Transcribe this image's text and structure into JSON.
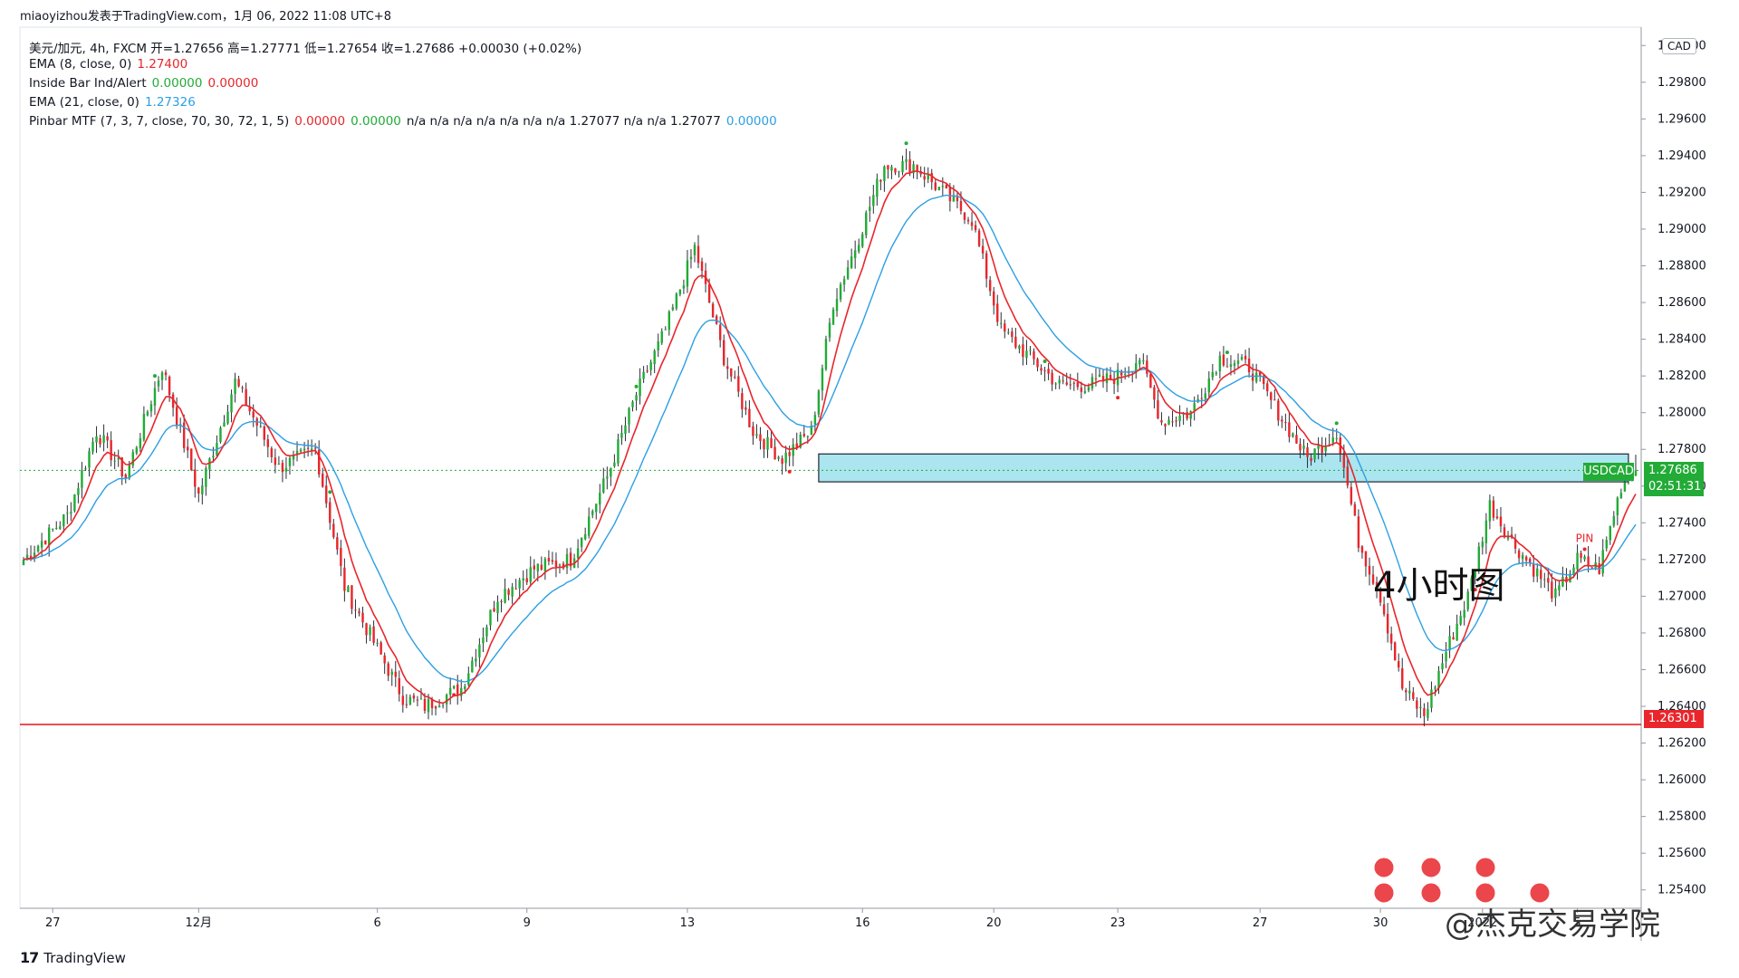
{
  "header": {
    "publisher": "miaoyizhou发表于TradingView.com，1月 06, 2022 11:08 UTC+8"
  },
  "legend": [
    {
      "label": "美元/加元, 4h, FXCM  开=1.27656  高=1.27771  低=1.27654  收=1.27686  +0.00030 (+0.02%)",
      "values": []
    },
    {
      "label": "EMA (8, close, 0)",
      "values": [
        {
          "text": "1.27400",
          "color": "#e8262b"
        }
      ]
    },
    {
      "label": "Inside Bar Ind/Alert",
      "values": [
        {
          "text": "0.00000",
          "color": "#22ab37"
        },
        {
          "text": "0.00000",
          "color": "#e8262b"
        }
      ]
    },
    {
      "label": "EMA (21, close, 0)",
      "values": [
        {
          "text": "1.27326",
          "color": "#2d9fe3"
        }
      ]
    },
    {
      "label": "Pinbar MTF (7, 3, 7, close, 70, 30, 72, 1, 5)",
      "values": [
        {
          "text": "0.00000",
          "color": "#e8262b"
        },
        {
          "text": "0.00000",
          "color": "#22ab37"
        },
        {
          "text": "n/a  n/a  n/a  n/a  n/a  n/a  n/a  1.27077  n/a  n/a  1.27077",
          "color": "#131722"
        },
        {
          "text": "0.00000",
          "color": "#2d9fe3"
        }
      ]
    }
  ],
  "axis": {
    "currency_button": "CAD",
    "y_ticks": [
      "1.30000",
      "1.29800",
      "1.29600",
      "1.29400",
      "1.29200",
      "1.29000",
      "1.28800",
      "1.28600",
      "1.28400",
      "1.28200",
      "1.28000",
      "1.27800",
      "1.27600",
      "1.27400",
      "1.27200",
      "1.27000",
      "1.26800",
      "1.26600",
      "1.26400",
      "1.26200",
      "1.26000",
      "1.25800",
      "1.25600",
      "1.25400"
    ],
    "x_ticks": [
      "27",
      "12月",
      "6",
      "9",
      "13",
      "16",
      "20",
      "23",
      "27",
      "30",
      "2022",
      "5"
    ]
  },
  "tags": {
    "pair": "USDCAD",
    "last_price": "1.27686",
    "countdown": "02:51:31",
    "support_price": "1.26301"
  },
  "labels": {
    "pin": "PIN",
    "timeframe_note": "4小时图",
    "brand": "TradingView",
    "brand_logo": "17",
    "watermark": "@杰克交易学院"
  },
  "colors": {
    "up": "#22ab37",
    "down": "#e8262b",
    "ema8": "#e8262b",
    "ema21": "#2d9fe3",
    "zone": "#8fdcea"
  },
  "chart_data": {
    "type": "candlestick",
    "title": "美元/加元, 4h, FXCM",
    "ylim": [
      1.253,
      1.301
    ],
    "x_categories": [
      "27",
      "12月",
      "6",
      "9",
      "13",
      "16",
      "20",
      "23",
      "27",
      "30",
      "2022",
      "5"
    ],
    "anchors": [
      [
        0,
        1.272
      ],
      [
        12,
        1.2744
      ],
      [
        20,
        1.279
      ],
      [
        28,
        1.2765
      ],
      [
        38,
        1.2825
      ],
      [
        48,
        1.2755
      ],
      [
        58,
        1.2817
      ],
      [
        70,
        1.277
      ],
      [
        80,
        1.278
      ],
      [
        88,
        1.2705
      ],
      [
        96,
        1.2675
      ],
      [
        104,
        1.2645
      ],
      [
        110,
        1.264
      ],
      [
        120,
        1.265
      ],
      [
        130,
        1.27
      ],
      [
        140,
        1.2715
      ],
      [
        150,
        1.272
      ],
      [
        160,
        1.2765
      ],
      [
        168,
        1.281
      ],
      [
        176,
        1.2845
      ],
      [
        184,
        1.289
      ],
      [
        192,
        1.283
      ],
      [
        200,
        1.279
      ],
      [
        208,
        1.2775
      ],
      [
        216,
        1.279
      ],
      [
        222,
        1.286
      ],
      [
        228,
        1.289
      ],
      [
        236,
        1.2935
      ],
      [
        244,
        1.2935
      ],
      [
        252,
        1.292
      ],
      [
        260,
        1.2905
      ],
      [
        268,
        1.2845
      ],
      [
        276,
        1.283
      ],
      [
        284,
        1.2815
      ],
      [
        292,
        1.2815
      ],
      [
        300,
        1.282
      ],
      [
        306,
        1.283
      ],
      [
        312,
        1.2795
      ],
      [
        320,
        1.28
      ],
      [
        328,
        1.283
      ],
      [
        336,
        1.2825
      ],
      [
        344,
        1.28
      ],
      [
        352,
        1.2775
      ],
      [
        360,
        1.279
      ],
      [
        366,
        1.273
      ],
      [
        372,
        1.27
      ],
      [
        378,
        1.265
      ],
      [
        384,
        1.2635
      ],
      [
        390,
        1.267
      ],
      [
        396,
        1.27
      ],
      [
        402,
        1.275
      ],
      [
        408,
        1.273
      ],
      [
        414,
        1.2715
      ],
      [
        420,
        1.27
      ],
      [
        426,
        1.272
      ],
      [
        432,
        1.2715
      ],
      [
        438,
        1.276
      ],
      [
        442,
        1.277
      ]
    ],
    "candle_count": 443,
    "last": {
      "open": 1.27656,
      "high": 1.27771,
      "low": 1.27654,
      "close": 1.27686
    },
    "ema8_last": 1.274,
    "ema21_last": 1.27326,
    "support_line": 1.26301,
    "resistance_zone": {
      "from_index": 218,
      "to_index": 440,
      "low": 1.27623,
      "high": 1.27775
    },
    "last_price_line": 1.27686,
    "markers": [
      {
        "index": 36,
        "side": "above",
        "color": "#22ab37"
      },
      {
        "index": 84,
        "side": "above",
        "color": "#22ab37"
      },
      {
        "index": 118,
        "side": "below",
        "color": "#e8262b"
      },
      {
        "index": 168,
        "side": "above",
        "color": "#22ab37"
      },
      {
        "index": 210,
        "side": "below",
        "color": "#e8262b"
      },
      {
        "index": 242,
        "side": "above",
        "color": "#22ab37"
      },
      {
        "index": 280,
        "side": "above",
        "color": "#22ab37"
      },
      {
        "index": 300,
        "side": "below",
        "color": "#e8262b"
      },
      {
        "index": 330,
        "side": "above",
        "color": "#22ab37"
      },
      {
        "index": 360,
        "side": "above",
        "color": "#22ab37"
      },
      {
        "index": 398,
        "side": "below",
        "color": "#e8262b"
      },
      {
        "index": 428,
        "side": "above",
        "color": "#e8262b"
      }
    ]
  }
}
